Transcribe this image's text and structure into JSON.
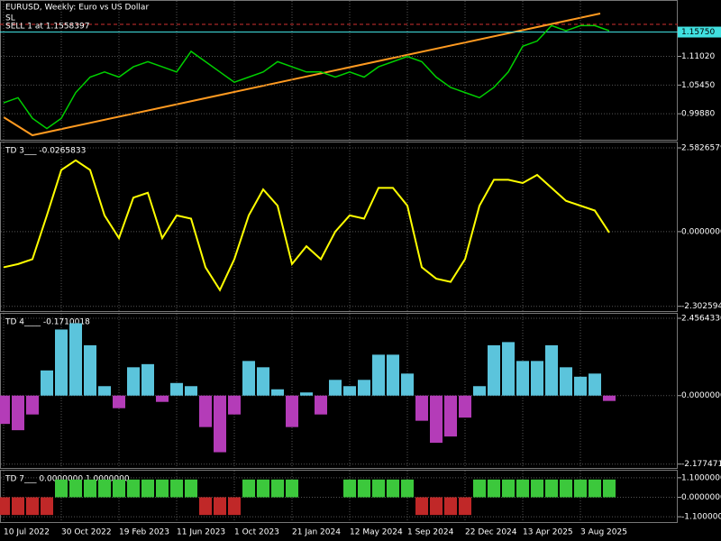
{
  "chart_data": [
    {
      "type": "line",
      "title": "EURUSD, Weekly:  Euro vs US Dollar",
      "annotations": [
        "SL",
        "SELL 1 at 1.1558397"
      ],
      "color": "#00d000",
      "values": [
        1.02,
        1.03,
        0.99,
        0.97,
        0.99,
        1.04,
        1.07,
        1.08,
        1.07,
        1.09,
        1.1,
        1.09,
        1.08,
        1.12,
        1.1,
        1.08,
        1.06,
        1.07,
        1.08,
        1.1,
        1.09,
        1.08,
        1.08,
        1.07,
        1.08,
        1.07,
        1.09,
        1.1,
        1.11,
        1.1,
        1.07,
        1.05,
        1.04,
        1.03,
        1.05,
        1.08,
        1.13,
        1.14,
        1.17,
        1.16,
        1.17,
        1.17,
        1.16
      ],
      "ylim": [
        0.9483,
        1.218
      ],
      "yticks": [
        {
          "value": 1.1575,
          "label": "1.15750"
        },
        {
          "value": 1.1102,
          "label": "1.11020"
        },
        {
          "value": 1.0545,
          "label": "1.05450"
        },
        {
          "value": 0.9988,
          "label": "0.99880"
        }
      ],
      "current_price_tick": 0
    },
    {
      "type": "line",
      "title": "TD 3___ -0.0265833",
      "color": "#ffff00",
      "values": [
        -1.1,
        -1.0,
        -0.85,
        0.5,
        1.9,
        2.2,
        1.9,
        0.5,
        -0.2,
        1.05,
        1.2,
        -0.2,
        0.5,
        0.4,
        -1.1,
        -1.8,
        -0.85,
        0.5,
        1.3,
        0.8,
        -1.0,
        -0.45,
        -0.85,
        0,
        0.5,
        0.4,
        1.35,
        1.35,
        0.8,
        -1.1,
        -1.45,
        -1.55,
        -0.85,
        0.8,
        1.6,
        1.6,
        1.5,
        1.75,
        1.35,
        0.95,
        0.8,
        0.65,
        -0.03
      ],
      "ylim": [
        -2.45,
        2.75
      ],
      "yticks": [
        2.5826579,
        {
          "value": 0,
          "label": "0.0000000"
        },
        -2.3025947
      ]
    },
    {
      "type": "histogram",
      "title": "TD 4____ -0.1710018",
      "colors": {
        "positive": "#5bc4dc",
        "negative": "#b43cb8"
      },
      "values": [
        -0.9,
        -1.1,
        -0.6,
        0.8,
        2.1,
        2.3,
        1.6,
        0.3,
        -0.4,
        0.9,
        1.0,
        -0.2,
        0.4,
        0.3,
        -1.0,
        -1.8,
        -0.6,
        1.1,
        0.9,
        0.2,
        -1.0,
        0.1,
        -0.6,
        0.5,
        0.3,
        0.5,
        1.3,
        1.3,
        0.7,
        -0.8,
        -1.5,
        -1.3,
        -0.7,
        0.3,
        1.6,
        1.7,
        1.1,
        1.1,
        1.6,
        0.9,
        0.6,
        0.7,
        -0.17
      ],
      "ylim": [
        -2.3,
        2.6
      ],
      "yticks": [
        {
          "value": 2.456433,
          "label": "2.4564330"
        },
        {
          "value": 0,
          "label": "0.0000000"
        },
        -2.1774711
      ]
    },
    {
      "type": "histogram",
      "title": "TD 7___ 0.0000000 1.0000000",
      "colors": {
        "positive": "#3cc83c",
        "negative": "#c02828"
      },
      "values": [
        -1,
        -1,
        -1,
        -1,
        1,
        1,
        1,
        1,
        1,
        1,
        1,
        1,
        1,
        1,
        -1,
        -1,
        -1,
        1,
        1,
        1,
        1,
        0,
        0,
        0,
        1,
        1,
        1,
        1,
        1,
        -1,
        -1,
        -1,
        -1,
        1,
        1,
        1,
        1,
        1,
        1,
        1,
        1,
        1,
        1
      ],
      "ylim": [
        -1.4,
        1.5
      ],
      "yticks": [
        {
          "value": 1.1,
          "label": "1.1000000"
        },
        {
          "value": 0,
          "label": "0.0000000"
        },
        {
          "value": -1.1,
          "label": "-1.1000000"
        }
      ]
    }
  ],
  "x_axis_labels": [
    "10 Jul 2022",
    "30 Oct 2022",
    "19 Feb 2023",
    "11 Jun 2023",
    "1 Oct 2023",
    "21 Jan 2024",
    "12 May 2024",
    "1 Sep 2024",
    "22 Dec 2024",
    "13 Apr 2025",
    "3 Aug 2025"
  ]
}
